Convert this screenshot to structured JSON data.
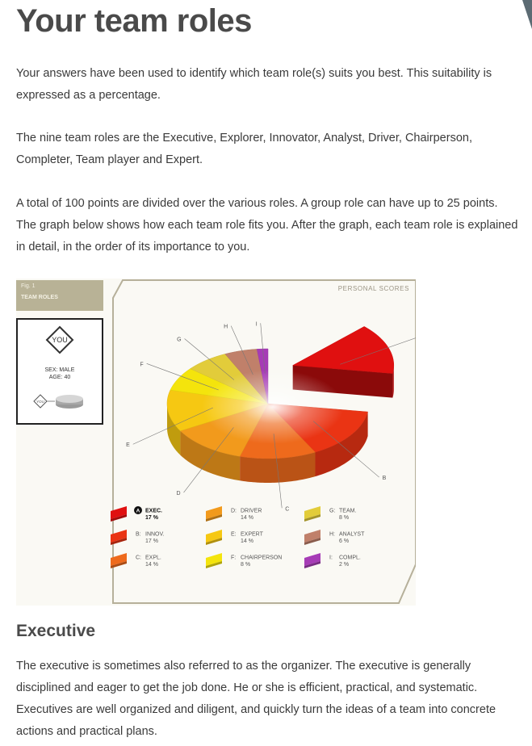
{
  "heading": "Your team roles",
  "paragraphs": [
    "Your answers have been used to identify which team role(s) suits you best. This suitability is expressed as a percentage.",
    "The nine team roles are the Executive, Explorer, Innovator, Analyst, Driver, Chairperson, Completer, Team player and Expert.",
    "A total of 100 points are divided over the various roles. A group role can have up to 25 points. The graph below shows how each team role fits you. After the graph, each team role is explained in detail, in the order of its importance to you."
  ],
  "figure": {
    "fig_number": "Fig. 1",
    "fig_title": "TEAM ROLES",
    "panel_title": "PERSONAL SCORES",
    "profile": {
      "badge": "YOU",
      "sex_line": "SEX: MALE",
      "age_line": "AGE: 40",
      "mini_badge": "YOU"
    }
  },
  "chart_data": {
    "type": "pie",
    "title": "PERSONAL SCORES",
    "slices": [
      {
        "letter": "A",
        "name": "EXEC.",
        "value": 17,
        "label": "17 %",
        "color": "#e01010",
        "exploded": true
      },
      {
        "letter": "B",
        "name": "INNOV.",
        "value": 17,
        "label": "17 %",
        "color": "#ea3414"
      },
      {
        "letter": "C",
        "name": "EXPL.",
        "value": 14,
        "label": "14 %",
        "color": "#ee6a1c"
      },
      {
        "letter": "D",
        "name": "DRIVER",
        "value": 14,
        "label": "14 %",
        "color": "#f29a1c"
      },
      {
        "letter": "E",
        "name": "EXPERT",
        "value": 14,
        "label": "14 %",
        "color": "#f6c812"
      },
      {
        "letter": "F",
        "name": "CHAIRPERSON",
        "value": 8,
        "label": "8 %",
        "color": "#f4e40c"
      },
      {
        "letter": "G",
        "name": "TEAM.",
        "value": 8,
        "label": "8 %",
        "color": "#e2cc3a"
      },
      {
        "letter": "H",
        "name": "ANALYST",
        "value": 6,
        "label": "6 %",
        "color": "#c0806a"
      },
      {
        "letter": "I",
        "name": "COMPL.",
        "value": 2,
        "label": "2 %",
        "color": "#a63cb6"
      }
    ],
    "highlighted": "A"
  },
  "section_heading": "Executive",
  "section_text": "The executive is sometimes also referred to as the organizer. The executive is generally disciplined and eager to get the job done. He or she is efficient, practical, and systematic. Executives are well organized and diligent, and quickly turn the ideas of a team into concrete actions and practical plans."
}
